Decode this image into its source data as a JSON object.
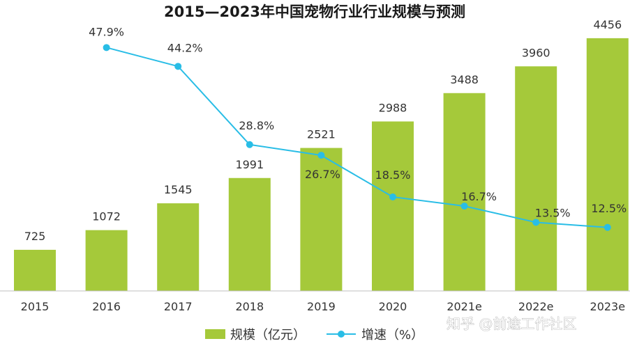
{
  "chart_data": {
    "type": "bar",
    "title": "2015—2023年中国宠物行业行业规模与预测",
    "categories": [
      "2015",
      "2016",
      "2017",
      "2018",
      "2019",
      "2020",
      "2021e",
      "2022e",
      "2023e"
    ],
    "series": [
      {
        "name": "规模（亿元）",
        "type": "bar",
        "values": [
          725,
          1072,
          1545,
          1991,
          2521,
          2988,
          3488,
          3960,
          4456
        ],
        "labels": [
          "725",
          "1072",
          "1545",
          "1991",
          "2521",
          "2988",
          "3488",
          "3960",
          "4456"
        ],
        "color": "#a5c93a"
      },
      {
        "name": "增速（%）",
        "type": "line",
        "values": [
          null,
          47.9,
          44.2,
          28.8,
          26.7,
          18.5,
          16.7,
          13.5,
          12.5
        ],
        "labels": [
          "",
          "47.9%",
          "44.2%",
          "28.8%",
          "26.7%",
          "18.5%",
          "16.7%",
          "13.5%",
          "12.5%"
        ],
        "color": "#29bde6"
      }
    ],
    "ylim_bar": [
      0,
      4700
    ],
    "ylim_line": [
      0,
      60
    ],
    "grid": false,
    "legend_position": "bottom"
  },
  "legend": {
    "bar_label": "规模（亿元）",
    "line_label": "增速（%）"
  },
  "watermark": "知乎 @前途工作社区",
  "colors": {
    "bar": "#a5c93a",
    "line": "#29bde6",
    "axis": "#bfbfbf",
    "text": "#333333"
  }
}
